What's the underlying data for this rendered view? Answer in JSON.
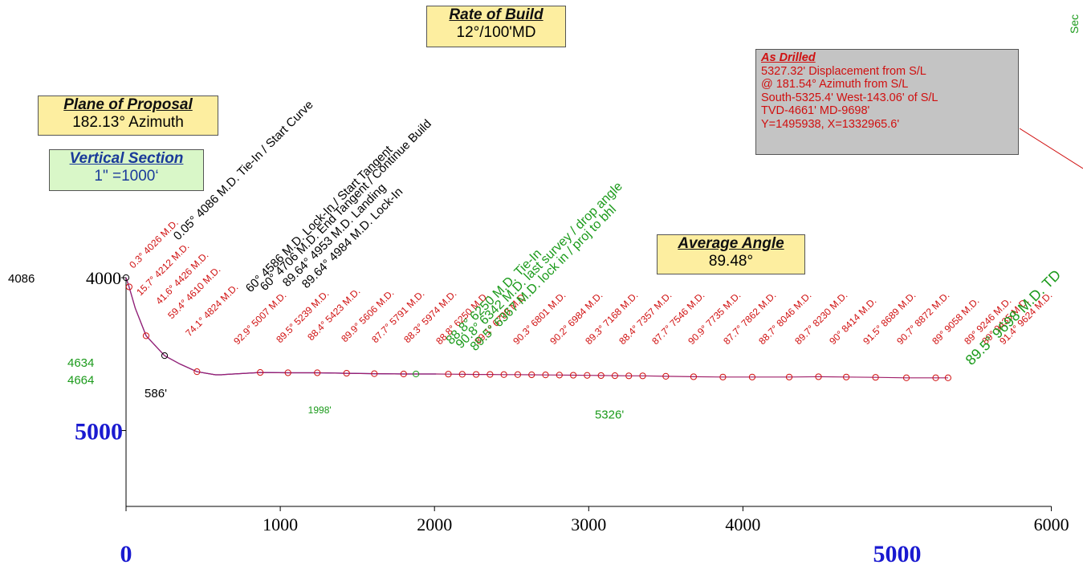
{
  "chart_data": {
    "type": "line",
    "title": "",
    "xlabel": "",
    "ylabel": "",
    "xlim": [
      0,
      6000
    ],
    "ylim": [
      4000,
      5500
    ],
    "y_reversed": true,
    "grid": false,
    "x_ticks": [
      1000,
      2000,
      3000,
      4000,
      6000
    ],
    "y_ticks": [
      4000,
      5000
    ],
    "x_grid_ticks": [
      0,
      5000
    ],
    "section_markers": [
      {
        "label": "4086",
        "x": 0,
        "y": 4000
      },
      {
        "label": "4634",
        "x": 0,
        "y": 4550
      },
      {
        "label": "4664",
        "x": 0,
        "y": 4665
      },
      {
        "label": "586'",
        "x": 120,
        "y": 4750
      },
      {
        "label": "1998'",
        "x": 1180,
        "y": 4855
      },
      {
        "label": "5326'",
        "x": 3040,
        "y": 4890
      }
    ],
    "series": [
      {
        "color": "#0000cc",
        "x": [
          0,
          20,
          60,
          130,
          250,
          350,
          460,
          580,
          620,
          640,
          870,
          1050,
          1240,
          1430,
          1610,
          1800,
          1880,
          1990,
          2010
        ],
        "y": [
          4000,
          4060,
          4200,
          4380,
          4510,
          4565,
          4615,
          4635,
          4635,
          4633,
          4620,
          4622,
          4622,
          4625,
          4628,
          4630,
          4630,
          4630,
          4630
        ]
      },
      {
        "color": "#a0206a",
        "x": [
          0,
          20,
          60,
          130,
          250,
          350,
          460,
          580,
          620,
          640,
          870,
          1050,
          1240,
          1430,
          1610,
          1800,
          1880,
          1990,
          2010,
          2090,
          2180,
          2270,
          2360,
          2450,
          2540,
          2630,
          2720,
          2810,
          2900,
          2990,
          3080,
          3170,
          3260,
          3350,
          3500,
          3680,
          3870,
          4060,
          4300,
          4490,
          4670,
          4860,
          5060,
          5250,
          5330
        ],
        "y": [
          4000,
          4060,
          4200,
          4380,
          4510,
          4565,
          4615,
          4635,
          4635,
          4633,
          4620,
          4622,
          4622,
          4625,
          4628,
          4630,
          4630,
          4630,
          4630,
          4631,
          4632,
          4633,
          4633,
          4634,
          4634,
          4635,
          4636,
          4637,
          4638,
          4639,
          4640,
          4641,
          4642,
          4642,
          4645,
          4648,
          4650,
          4650,
          4650,
          4648,
          4650,
          4652,
          4655,
          4655,
          4655
        ]
      }
    ],
    "survey_points": [
      {
        "x": 0,
        "y": 4000,
        "status": "black",
        "label": "0.3° 4026 M.D.",
        "label_color": "red"
      },
      {
        "x": 20,
        "y": 4060,
        "status": "red",
        "label": "15.7° 4212 M.D.",
        "label_color": "red"
      },
      {
        "x": 130,
        "y": 4380,
        "status": "red",
        "label": "41.6° 4426 M.D.",
        "label_color": "red"
      },
      {
        "x": 250,
        "y": 4510,
        "status": "black",
        "label": "59.4° 4610 M.D.",
        "label_color": "red"
      },
      {
        "x": 460,
        "y": 4615,
        "status": "red",
        "label": "74.1° 4824 M.D.",
        "label_color": "red"
      },
      {
        "x": 870,
        "y": 4620,
        "status": "red",
        "label": "92.9° 5007 M.D.",
        "label_color": "red"
      },
      {
        "x": 1050,
        "y": 4622,
        "status": "red",
        "label": "89.5° 5239 M.D.",
        "label_color": "red"
      },
      {
        "x": 1240,
        "y": 4622,
        "status": "red",
        "label": "88.4° 5423 M.D.",
        "label_color": "red"
      },
      {
        "x": 1430,
        "y": 4625,
        "status": "red",
        "label": "89.9° 5606 M.D.",
        "label_color": "red"
      },
      {
        "x": 1610,
        "y": 4628,
        "status": "red",
        "label": "87.7° 5791 M.D.",
        "label_color": "red"
      },
      {
        "x": 1800,
        "y": 4630,
        "status": "red",
        "label": "88.3° 5974 M.D.",
        "label_color": "red"
      },
      {
        "x": 1880,
        "y": 4630,
        "status": "green",
        "label": "88.8° 6250 M.D.",
        "label_color": "red"
      },
      {
        "x": 2090,
        "y": 4631,
        "status": "red",
        "label": "89.1° 6709 M.D.",
        "label_color": "red"
      },
      {
        "x": 2180,
        "y": 4632,
        "status": "red",
        "label": "90.3° 6801 M.D.",
        "label_color": "red"
      },
      {
        "x": 2270,
        "y": 4633,
        "status": "red",
        "label": "90.2° 6984 M.D.",
        "label_color": "red"
      },
      {
        "x": 2360,
        "y": 4633,
        "status": "red",
        "label": "89.3° 7168 M.D.",
        "label_color": "red"
      },
      {
        "x": 2450,
        "y": 4634,
        "status": "red",
        "label": "88.4° 7357 M.D.",
        "label_color": "red"
      },
      {
        "x": 2540,
        "y": 4634,
        "status": "red",
        "label": "87.7° 7546 M.D.",
        "label_color": "red"
      },
      {
        "x": 2630,
        "y": 4635,
        "status": "red",
        "label": "90.9° 7735 M.D.",
        "label_color": "red"
      },
      {
        "x": 2720,
        "y": 4636,
        "status": "red",
        "label": "87.7° 7862 M.D.",
        "label_color": "red"
      },
      {
        "x": 2810,
        "y": 4637,
        "status": "red",
        "label": "88.7° 8046 M.D.",
        "label_color": "red"
      },
      {
        "x": 2900,
        "y": 4638,
        "status": "red",
        "label": "89.7° 8230 M.D.",
        "label_color": "red"
      },
      {
        "x": 2990,
        "y": 4639,
        "status": "red",
        "label": "90° 8414 M.D.",
        "label_color": "red"
      },
      {
        "x": 3080,
        "y": 4640,
        "status": "red",
        "label": "91.5° 8689 M.D.",
        "label_color": "red"
      },
      {
        "x": 3170,
        "y": 4641,
        "status": "red",
        "label": "90.7° 8872 M.D.",
        "label_color": "red"
      },
      {
        "x": 3260,
        "y": 4642,
        "status": "red",
        "label": "89° 9058 M.D.",
        "label_color": "red"
      },
      {
        "x": 3350,
        "y": 4642,
        "status": "red",
        "label": "89° 9246 M.D.",
        "label_color": "red"
      },
      {
        "x": 3500,
        "y": 4645,
        "status": "red",
        "label": "89° 9435 M.D.",
        "label_color": "red"
      },
      {
        "x": 3680,
        "y": 4648,
        "status": "red",
        "label": "91.4° 9624 M.D.",
        "label_color": "red"
      },
      {
        "x": 3870,
        "y": 4650,
        "status": "red",
        "label": "91.4° 9698 M.D.",
        "label_color": "red"
      },
      {
        "x": 4060,
        "y": 4650,
        "status": "red",
        "label": "",
        "label_color": "red"
      },
      {
        "x": 4300,
        "y": 4650,
        "status": "red",
        "label": "",
        "label_color": "red"
      },
      {
        "x": 4490,
        "y": 4648,
        "status": "red",
        "label": "",
        "label_color": "red"
      },
      {
        "x": 4670,
        "y": 4650,
        "status": "red",
        "label": "",
        "label_color": "red"
      },
      {
        "x": 4860,
        "y": 4652,
        "status": "red",
        "label": "",
        "label_color": "red"
      },
      {
        "x": 5060,
        "y": 4655,
        "status": "red",
        "label": "",
        "label_color": "red"
      },
      {
        "x": 5250,
        "y": 4655,
        "status": "red",
        "label": "",
        "label_color": "red"
      },
      {
        "x": 5330,
        "y": 4655,
        "status": "red",
        "label": "",
        "label_color": "red"
      }
    ],
    "plan_labels_black": [
      "0.05° 4086 M.D. Tie-In / Start Curve",
      "60° 4586 M.D. Lock-In / Start Tangent",
      "60° 4706 M.D. End Tangent / Continue Build",
      "89.64° 4953 M.D. Landing",
      "89.64° 4984 M.D. Lock-In"
    ],
    "green_labels": [
      "88.8° 6250 M.D. Tie-In",
      "90.8° 6342 M.D. last survey / drop angle",
      "89.5° 6367 M.D. lock in / proj to bhl",
      "89.5° 9698 M.D. TD"
    ]
  },
  "annotations": {
    "rate_of_build": {
      "title": "Rate of Build",
      "value": "12°/100'MD"
    },
    "plane_of_proposal": {
      "title": "Plane of Proposal",
      "value": "182.13° Azimuth"
    },
    "vertical_section": {
      "title": "Vertical Section",
      "value": "1\" =1000‘"
    },
    "average_angle": {
      "title": "Average Angle",
      "value": "89.48°"
    },
    "as_drilled": {
      "title": "As Drilled",
      "lines": [
        "5327.32' Displacement from S/L",
        "@ 181.54° Azimuth from S/L",
        "South-5325.4' West-143.06' of S/L",
        "TVD-4661' MD-9698'",
        "Y=1495938, X=1332965.6'"
      ]
    },
    "edge_text": "Sec"
  },
  "colors": {
    "red": "#d01010",
    "green": "#1a9a1a",
    "black": "#000000",
    "blue_axis": "#1a1ad0"
  }
}
